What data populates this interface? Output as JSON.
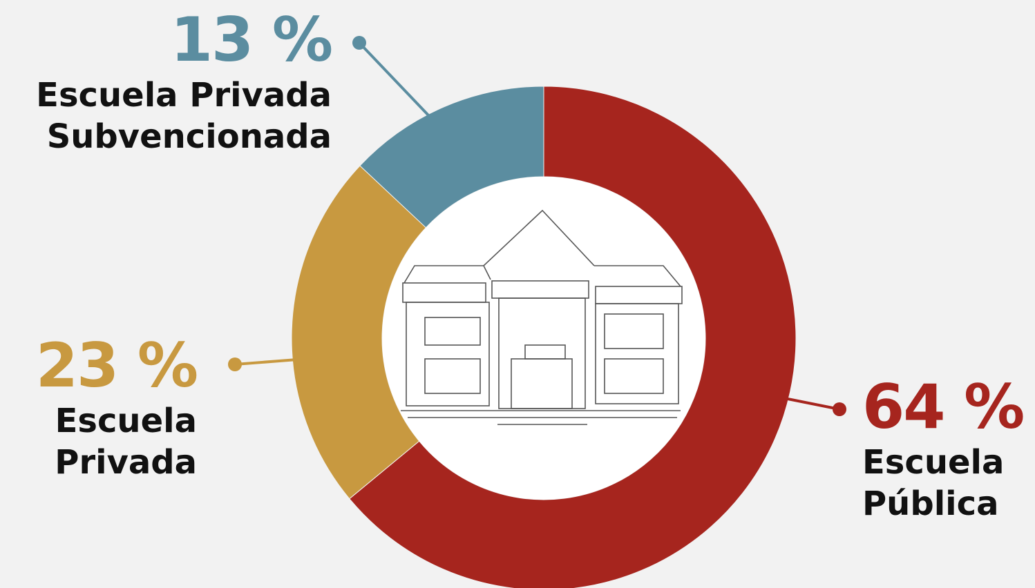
{
  "chart_data": {
    "type": "donut",
    "categories": [
      "Escuela Pública",
      "Escuela Privada",
      "Escuela Privada Subvencionada"
    ],
    "values": [
      64,
      23,
      13
    ],
    "value_labels": [
      "64 %",
      "23 %",
      "13 %"
    ],
    "colors": [
      "#a6251e",
      "#c89940",
      "#5b8da0"
    ]
  }
}
